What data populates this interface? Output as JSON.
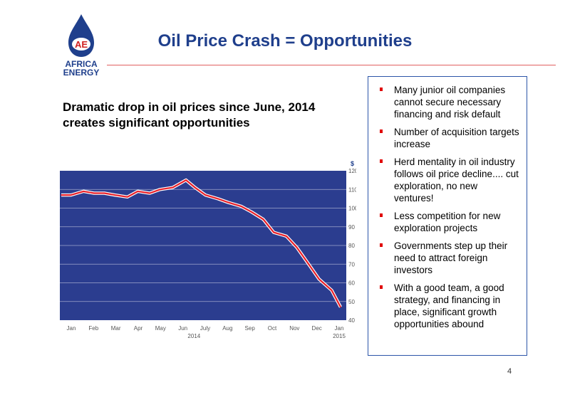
{
  "logo": {
    "line1": "AFRICA",
    "line2": "ENERGY",
    "monogram": "AE",
    "icon": "oil-drop-logo"
  },
  "slide": {
    "title": "Oil Price Crash = Opportunities",
    "subtitle": "Dramatic drop in oil prices since June, 2014 creates significant opportunities",
    "page_number": "4"
  },
  "bullets": [
    "Many junior oil companies cannot secure necessary financing and risk default",
    "Number of acquisition targets increase",
    "Herd mentality in oil industry follows oil price decline.... cut exploration, no new ventures!",
    "Less competition for new exploration projects",
    "Governments step up their need to attract foreign investors",
    "With a good team, a good strategy, and financing in place, significant growth opportunities abound"
  ],
  "colors": {
    "title": "#1f3f8c",
    "plot_bg": "#2b3d8f",
    "line": "#e8202a",
    "bullet": "#e00000"
  },
  "chart_data": {
    "type": "line",
    "title": "",
    "xlabel": "",
    "ylabel": "$",
    "ylim": [
      40,
      120
    ],
    "yticks": [
      40,
      50,
      60,
      70,
      80,
      90,
      100,
      110,
      120
    ],
    "grid": true,
    "x_ticks": [
      "Jan",
      "Feb",
      "Mar",
      "Apr",
      "May",
      "Jun",
      "July",
      "Aug",
      "Sep",
      "Oct",
      "Nov",
      "Dec",
      "Jan"
    ],
    "year_labels": [
      "2014",
      "2015"
    ],
    "series": [
      {
        "x": [
          "2014-01-02",
          "2014-01-15",
          "2014-02-01",
          "2014-02-15",
          "2014-03-01",
          "2014-03-15",
          "2014-04-01",
          "2014-04-15",
          "2014-05-01",
          "2014-05-15",
          "2014-06-01",
          "2014-06-19",
          "2014-07-01",
          "2014-07-15",
          "2014-08-01",
          "2014-08-15",
          "2014-09-01",
          "2014-09-15",
          "2014-10-01",
          "2014-10-15",
          "2014-11-01",
          "2014-11-15",
          "2014-12-01",
          "2014-12-15",
          "2015-01-01",
          "2015-01-13"
        ],
        "values": [
          107,
          107,
          109,
          108,
          108,
          107,
          106,
          109,
          108,
          110,
          111,
          115,
          111,
          107,
          105,
          103,
          101,
          98,
          94,
          87,
          85,
          79,
          70,
          62,
          56,
          47
        ]
      }
    ]
  }
}
